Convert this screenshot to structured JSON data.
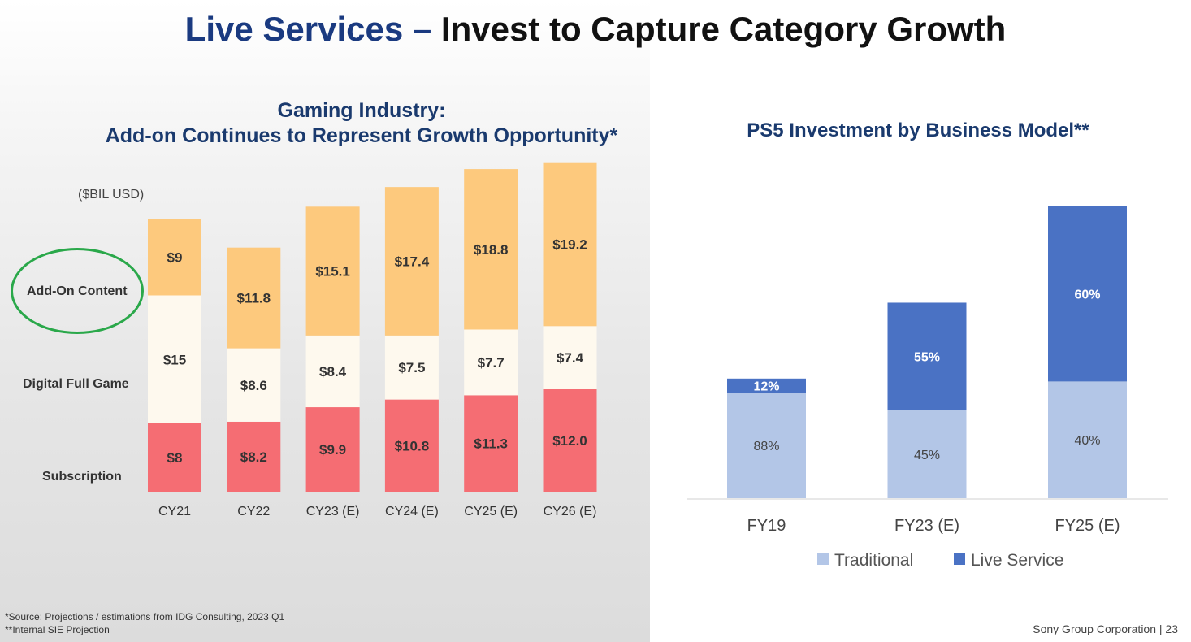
{
  "slide": {
    "title_accent": "Live Services –",
    "title_rest": " Invest to Capture Category Growth",
    "footnote_1": "*Source: Projections / estimations from IDG Consulting, 2023 Q1",
    "footnote_2": "**Internal SIE Projection",
    "footer": "Sony Group Corporation  |  23"
  },
  "colors": {
    "subscription": "#f56d73",
    "digital_full_game": "#fef9ee",
    "add_on_content": "#fdc97d",
    "traditional": "#b3c6e7",
    "live_service": "#4a72c4",
    "highlight_circle": "#2aa84a",
    "title_accent": "#1a3a80"
  },
  "chart_data": [
    {
      "type": "bar",
      "stacked": true,
      "title_line_1": "Gaming Industry:",
      "title_line_2": "Add-on Continues to Represent Growth Opportunity*",
      "units_label": "($BIL USD)",
      "categories": [
        "CY21",
        "CY22",
        "CY23 (E)",
        "CY24 (E)",
        "CY25 (E)",
        "CY26 (E)"
      ],
      "series": [
        {
          "name": "Subscription",
          "values": [
            8,
            8.2,
            9.9,
            10.8,
            11.3,
            12.0
          ],
          "labels": [
            "$8",
            "$8.2",
            "$9.9",
            "$10.8",
            "$11.3",
            "$12.0"
          ]
        },
        {
          "name": "Digital Full Game",
          "values": [
            15,
            8.6,
            8.4,
            7.5,
            7.7,
            7.4
          ],
          "labels": [
            "$15",
            "$8.6",
            "$8.4",
            "$7.5",
            "$7.7",
            "$7.4"
          ]
        },
        {
          "name": "Add-On Content",
          "values": [
            9,
            11.8,
            15.1,
            17.4,
            18.8,
            19.2
          ],
          "labels": [
            "$9",
            "$11.8",
            "$15.1",
            "$17.4",
            "$18.8",
            "$19.2"
          ]
        }
      ],
      "highlighted_series": "Add-On Content",
      "legend": "left-side row labels"
    },
    {
      "type": "bar",
      "stacked": true,
      "title": "PS5 Investment by Business Model**",
      "categories": [
        "FY19",
        "FY23 (E)",
        "FY25 (E)"
      ],
      "bar_totals_relative": [
        0.41,
        0.67,
        1.0
      ],
      "series": [
        {
          "name": "Traditional",
          "values": [
            88,
            45,
            40
          ],
          "labels": [
            "88%",
            "45%",
            "40%"
          ]
        },
        {
          "name": "Live Service",
          "values": [
            12,
            55,
            60
          ],
          "labels": [
            "12%",
            "55%",
            "60%"
          ]
        }
      ],
      "legend": "bottom"
    }
  ]
}
